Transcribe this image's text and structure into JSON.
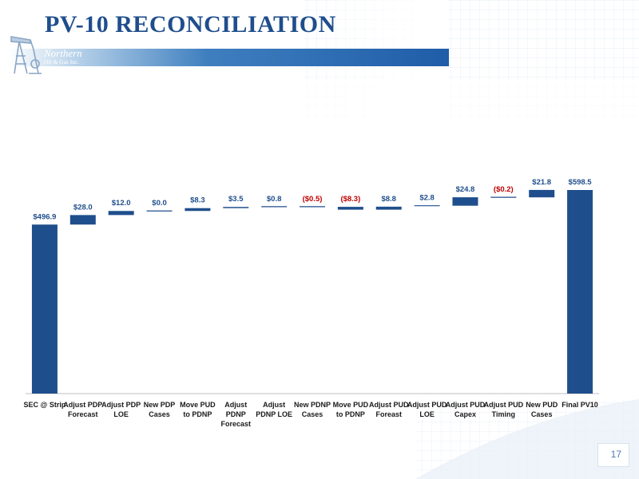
{
  "slide": {
    "title": "PV-10 RECONCILIATION",
    "page_number": "17"
  },
  "logo": {
    "line1": "Northern",
    "line2": "Oil & Gas Inc.",
    "icon": "oil-derrick-icon"
  },
  "colors": {
    "title": "#1f4e8c",
    "bar": "#1f4e8c",
    "positive_label": "#1f4e8c",
    "negative_label": "#c00000"
  },
  "chart_data": {
    "type": "bar",
    "subtype": "waterfall",
    "title": "",
    "xlabel": "",
    "ylabel": "",
    "ylim": [
      0,
      600
    ],
    "grid": false,
    "legend": "none",
    "categories": [
      "SEC @ Strip",
      "Adjust PDP Forecast",
      "Adjust PDP LOE",
      "New PDP Cases",
      "Move PUD to PDNP",
      "Adjust PDNP Forecast",
      "Adjust PDNP LOE",
      "New PDNP Cases",
      "Move PUD to PDNP",
      "Adjust PUD Foreast",
      "Adjust PUD LOE",
      "Adjust PUD Capex",
      "Adjust PUD Timing",
      "New PUD Cases",
      "Final PV10"
    ],
    "category_lines": [
      [
        "SEC @ Strip"
      ],
      [
        "Adjust PDP",
        "Forecast"
      ],
      [
        "Adjust PDP",
        "LOE"
      ],
      [
        "New PDP",
        "Cases"
      ],
      [
        "Move PUD",
        "to PDNP"
      ],
      [
        "Adjust",
        "PDNP",
        "Forecast"
      ],
      [
        "Adjust",
        "PDNP LOE"
      ],
      [
        "New PDNP",
        "Cases"
      ],
      [
        "Move PUD",
        "to PDNP"
      ],
      [
        "Adjust PUD",
        "Foreast"
      ],
      [
        "Adjust PUD",
        "LOE"
      ],
      [
        "Adjust PUD",
        "Capex"
      ],
      [
        "Adjust PUD",
        "Timing"
      ],
      [
        "New PUD",
        "Cases"
      ],
      [
        "Final PV10"
      ]
    ],
    "values": [
      496.9,
      28.0,
      12.0,
      0.0,
      8.3,
      3.5,
      0.8,
      -0.5,
      -8.3,
      8.8,
      2.8,
      24.8,
      -0.2,
      21.8,
      598.5
    ],
    "kinds": [
      "total",
      "delta",
      "delta",
      "delta",
      "delta",
      "delta",
      "delta",
      "delta",
      "delta",
      "delta",
      "delta",
      "delta",
      "delta",
      "delta",
      "total"
    ],
    "labels": [
      "$496.9",
      "$28.0",
      "$12.0",
      "$0.0",
      "$8.3",
      "$3.5",
      "$0.8",
      "($0.5)",
      "($8.3)",
      "$8.8",
      "$2.8",
      "$24.8",
      "($0.2)",
      "$21.8",
      "$598.5"
    ]
  }
}
